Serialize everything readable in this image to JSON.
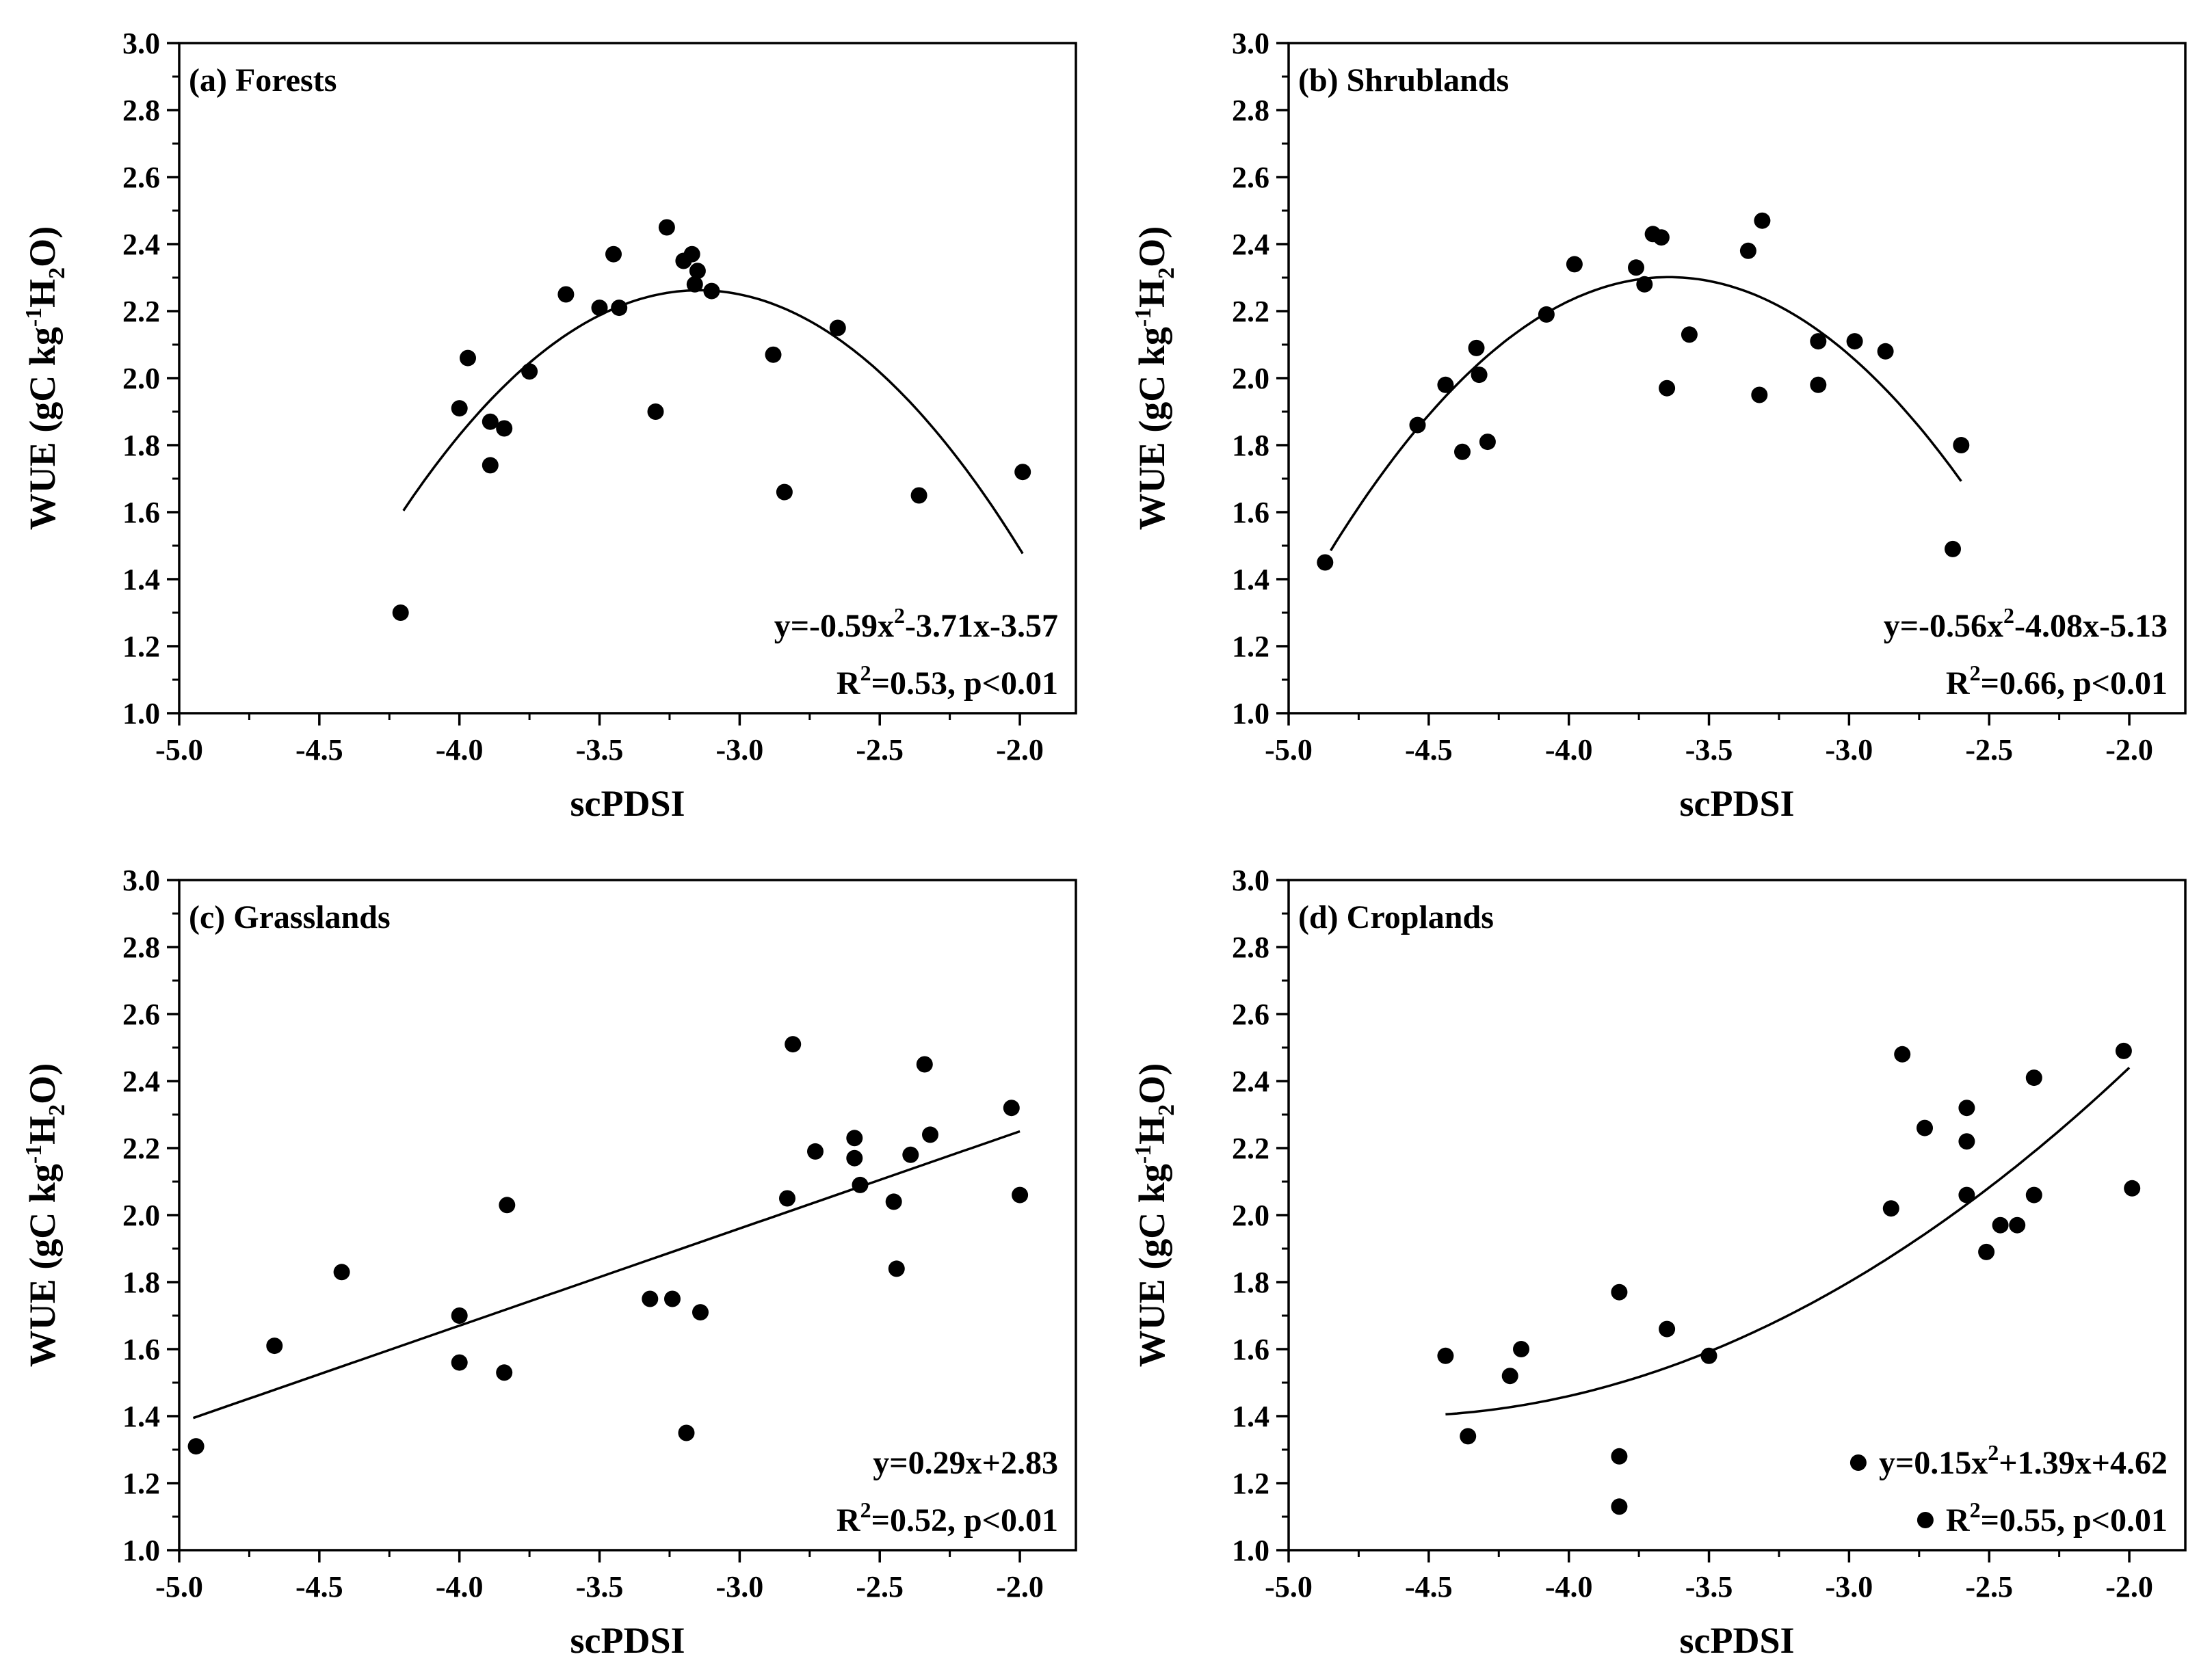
{
  "chart_data": [
    {
      "type": "scatter",
      "panel_label": "(a) Forests",
      "xlabel": "scPDSI",
      "ylabel": {
        "prefix": "WUE (gC kg",
        "sup": "-1",
        "mid": "H",
        "sub": "2",
        "suffix": "O)"
      },
      "xlim": [
        -5.0,
        -1.8
      ],
      "ylim": [
        1.0,
        3.0
      ],
      "x_ticks": [
        "-5.0",
        "-4.5",
        "-4.0",
        "-3.5",
        "-3.0",
        "-2.5",
        "-2.0"
      ],
      "y_ticks": [
        "1.0",
        "1.2",
        "1.4",
        "1.6",
        "1.8",
        "2.0",
        "2.2",
        "2.4",
        "2.6",
        "2.8",
        "3.0"
      ],
      "points": [
        [
          -4.21,
          1.3
        ],
        [
          -4.0,
          1.91
        ],
        [
          -3.97,
          2.06
        ],
        [
          -3.89,
          1.87
        ],
        [
          -3.89,
          1.74
        ],
        [
          -3.84,
          1.85
        ],
        [
          -3.75,
          2.02
        ],
        [
          -3.62,
          2.25
        ],
        [
          -3.5,
          2.21
        ],
        [
          -3.45,
          2.37
        ],
        [
          -3.43,
          2.21
        ],
        [
          -3.3,
          1.9
        ],
        [
          -3.26,
          2.45
        ],
        [
          -3.2,
          2.35
        ],
        [
          -3.17,
          2.37
        ],
        [
          -3.16,
          2.28
        ],
        [
          -3.15,
          2.32
        ],
        [
          -3.1,
          2.26
        ],
        [
          -2.88,
          2.07
        ],
        [
          -2.84,
          1.66
        ],
        [
          -2.65,
          2.15
        ],
        [
          -2.36,
          1.65
        ],
        [
          -1.99,
          1.72
        ]
      ],
      "fit": {
        "kind": "poly2",
        "coefficients": [
          -0.59,
          -3.71,
          -3.57
        ],
        "x_range": [
          -4.2,
          -1.99
        ]
      },
      "equation": {
        "prefix": "y=-0.59x",
        "sup": "2",
        "suffix": "-3.71x-3.57"
      },
      "stats": {
        "prefix": "R",
        "sup": "2",
        "suffix": "=0.53, p<0.01"
      },
      "legend_markers": false
    },
    {
      "type": "scatter",
      "panel_label": "(b) Shrublands",
      "xlabel": "scPDSI",
      "ylabel": {
        "prefix": "WUE (gC kg",
        "sup": "-1",
        "mid": "H",
        "sub": "2",
        "suffix": "O)"
      },
      "xlim": [
        -5.0,
        -1.8
      ],
      "ylim": [
        1.0,
        3.0
      ],
      "x_ticks": [
        "-5.0",
        "-4.5",
        "-4.0",
        "-3.5",
        "-3.0",
        "-2.5",
        "-2.0"
      ],
      "y_ticks": [
        "1.0",
        "1.2",
        "1.4",
        "1.6",
        "1.8",
        "2.0",
        "2.2",
        "2.4",
        "2.6",
        "2.8",
        "3.0"
      ],
      "points": [
        [
          -4.87,
          1.45
        ],
        [
          -4.54,
          1.86
        ],
        [
          -4.44,
          1.98
        ],
        [
          -4.38,
          1.78
        ],
        [
          -4.33,
          2.09
        ],
        [
          -4.32,
          2.01
        ],
        [
          -4.29,
          1.81
        ],
        [
          -4.08,
          2.19
        ],
        [
          -3.98,
          2.34
        ],
        [
          -3.76,
          2.33
        ],
        [
          -3.73,
          2.28
        ],
        [
          -3.7,
          2.43
        ],
        [
          -3.67,
          2.42
        ],
        [
          -3.65,
          1.97
        ],
        [
          -3.57,
          2.13
        ],
        [
          -3.36,
          2.38
        ],
        [
          -3.32,
          1.95
        ],
        [
          -3.31,
          2.47
        ],
        [
          -3.11,
          2.11
        ],
        [
          -3.11,
          1.98
        ],
        [
          -2.98,
          2.11
        ],
        [
          -2.87,
          2.08
        ],
        [
          -2.63,
          1.49
        ],
        [
          -2.6,
          1.8
        ]
      ],
      "fit": {
        "kind": "poly2",
        "coefficients": [
          -0.56,
          -4.08,
          -5.13
        ],
        "x_range": [
          -4.85,
          -2.6
        ]
      },
      "equation": {
        "prefix": "y=-0.56x",
        "sup": "2",
        "suffix": "-4.08x-5.13"
      },
      "stats": {
        "prefix": "R",
        "sup": "2",
        "suffix": "=0.66, p<0.01"
      },
      "legend_markers": false
    },
    {
      "type": "scatter",
      "panel_label": "(c) Grasslands",
      "xlabel": "scPDSI",
      "ylabel": {
        "prefix": "WUE (gC kg",
        "sup": "-1",
        "mid": "H",
        "sub": "2",
        "suffix": "O)"
      },
      "xlim": [
        -5.0,
        -1.8
      ],
      "ylim": [
        1.0,
        3.0
      ],
      "x_ticks": [
        "-5.0",
        "-4.5",
        "-4.0",
        "-3.5",
        "-3.0",
        "-2.5",
        "-2.0"
      ],
      "y_ticks": [
        "1.0",
        "1.2",
        "1.4",
        "1.6",
        "1.8",
        "2.0",
        "2.2",
        "2.4",
        "2.6",
        "2.8",
        "3.0"
      ],
      "points": [
        [
          -4.94,
          1.31
        ],
        [
          -4.66,
          1.61
        ],
        [
          -4.42,
          1.83
        ],
        [
          -4.0,
          1.7
        ],
        [
          -4.0,
          1.56
        ],
        [
          -3.84,
          1.53
        ],
        [
          -3.83,
          2.03
        ],
        [
          -3.32,
          1.75
        ],
        [
          -3.24,
          1.75
        ],
        [
          -3.19,
          1.35
        ],
        [
          -3.14,
          1.71
        ],
        [
          -2.83,
          2.05
        ],
        [
          -2.81,
          2.51
        ],
        [
          -2.73,
          2.19
        ],
        [
          -2.59,
          2.23
        ],
        [
          -2.59,
          2.17
        ],
        [
          -2.57,
          2.09
        ],
        [
          -2.45,
          2.04
        ],
        [
          -2.44,
          1.84
        ],
        [
          -2.39,
          2.18
        ],
        [
          -2.34,
          2.45
        ],
        [
          -2.32,
          2.24
        ],
        [
          -2.03,
          2.32
        ],
        [
          -2.0,
          2.06
        ]
      ],
      "fit": {
        "kind": "linear",
        "coefficients": [
          0.29,
          2.83
        ],
        "x_range": [
          -4.95,
          -2.0
        ]
      },
      "equation": {
        "prefix": "y=0.29x+2.83",
        "sup": "",
        "suffix": ""
      },
      "stats": {
        "prefix": "R",
        "sup": "2",
        "suffix": "=0.52, p<0.01"
      },
      "legend_markers": false
    },
    {
      "type": "scatter",
      "panel_label": "(d) Croplands",
      "xlabel": "scPDSI",
      "ylabel": {
        "prefix": "WUE (gC kg",
        "sup": "-1",
        "mid": "H",
        "sub": "2",
        "suffix": "O)"
      },
      "xlim": [
        -5.0,
        -1.8
      ],
      "ylim": [
        1.0,
        3.0
      ],
      "x_ticks": [
        "-5.0",
        "-4.5",
        "-4.0",
        "-3.5",
        "-3.0",
        "-2.5",
        "-2.0"
      ],
      "y_ticks": [
        "1.0",
        "1.2",
        "1.4",
        "1.6",
        "1.8",
        "2.0",
        "2.2",
        "2.4",
        "2.6",
        "2.8",
        "3.0"
      ],
      "points": [
        [
          -4.44,
          1.58
        ],
        [
          -4.36,
          1.34
        ],
        [
          -4.21,
          1.52
        ],
        [
          -4.17,
          1.6
        ],
        [
          -3.82,
          1.77
        ],
        [
          -3.82,
          1.28
        ],
        [
          -3.82,
          1.13
        ],
        [
          -3.65,
          1.66
        ],
        [
          -3.5,
          1.58
        ],
        [
          -2.85,
          2.02
        ],
        [
          -2.81,
          2.48
        ],
        [
          -2.73,
          2.26
        ],
        [
          -2.58,
          2.32
        ],
        [
          -2.58,
          2.22
        ],
        [
          -2.58,
          2.06
        ],
        [
          -2.51,
          1.89
        ],
        [
          -2.46,
          1.97
        ],
        [
          -2.4,
          1.97
        ],
        [
          -2.34,
          2.41
        ],
        [
          -2.34,
          2.06
        ],
        [
          -2.02,
          2.49
        ],
        [
          -1.99,
          2.08
        ]
      ],
      "fit": {
        "kind": "poly2",
        "coefficients": [
          0.15,
          1.39,
          4.62
        ],
        "x_range": [
          -4.44,
          -2.0
        ]
      },
      "equation": {
        "prefix": "y=0.15x",
        "sup": "2",
        "suffix": "+1.39x+4.62"
      },
      "stats": {
        "prefix": "R",
        "sup": "2",
        "suffix": "=0.55, p<0.01"
      },
      "legend_markers": true
    }
  ]
}
